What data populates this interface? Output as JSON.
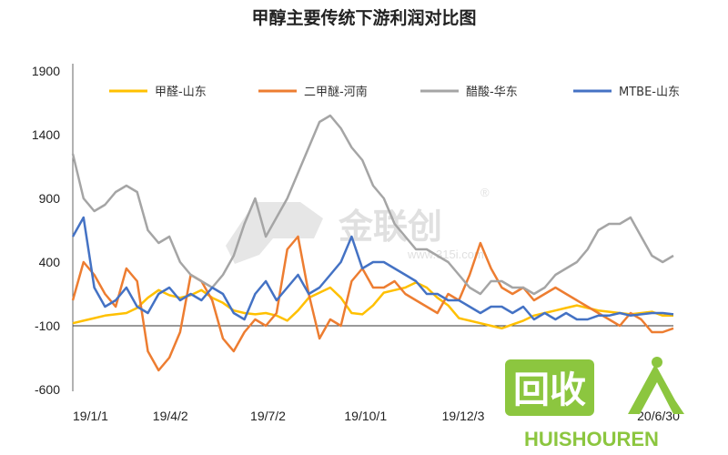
{
  "chart_data": {
    "type": "line",
    "title": "甲醇主要传统下游利润对比图",
    "xlabel": "",
    "ylabel": "",
    "ylim": [
      -600,
      1900
    ],
    "yticks": [
      "1900",
      "1400",
      "900",
      "400",
      "-100",
      "-600"
    ],
    "x_tick_labels": [
      "19/1/1",
      "19/4/2",
      "19/7/2",
      "19/10/1",
      "19/12/31",
      "20/6/30"
    ],
    "x_tick_labels_shown": [
      "19/1/1",
      "19/4/2",
      "19/7/2",
      "19/10/1",
      "19/12/3",
      "20/6/30"
    ],
    "x_tick_days": [
      0,
      91,
      182,
      273,
      364,
      546
    ],
    "x_range_days": [
      0,
      560
    ],
    "legend_position": "top",
    "series": [
      {
        "name": "甲醛-山东",
        "color": "#ffc000",
        "x": [
          0,
          10,
          20,
          30,
          40,
          50,
          60,
          70,
          80,
          90,
          100,
          110,
          120,
          130,
          140,
          150,
          160,
          170,
          180,
          190,
          200,
          210,
          220,
          230,
          240,
          250,
          260,
          270,
          280,
          290,
          300,
          310,
          320,
          330,
          340,
          350,
          360,
          370,
          380,
          390,
          400,
          410,
          420,
          430,
          440,
          450,
          460,
          470,
          480,
          490,
          500,
          510,
          520,
          530,
          540,
          550,
          560
        ],
        "values": [
          -80,
          -60,
          -40,
          -20,
          -10,
          0,
          40,
          120,
          180,
          140,
          120,
          140,
          180,
          120,
          80,
          20,
          0,
          -10,
          0,
          -20,
          -60,
          20,
          120,
          160,
          200,
          120,
          0,
          -10,
          60,
          160,
          180,
          200,
          240,
          200,
          120,
          60,
          -40,
          -60,
          -80,
          -100,
          -120,
          -90,
          -60,
          -20,
          0,
          20,
          40,
          60,
          40,
          20,
          10,
          0,
          -10,
          0,
          10,
          -20,
          -20
        ]
      },
      {
        "name": "二甲醚-河南",
        "color": "#ed7d31",
        "x": [
          0,
          10,
          20,
          30,
          40,
          50,
          60,
          70,
          80,
          90,
          100,
          110,
          120,
          130,
          140,
          150,
          160,
          170,
          180,
          190,
          200,
          210,
          220,
          230,
          240,
          250,
          260,
          270,
          280,
          290,
          300,
          310,
          320,
          330,
          340,
          350,
          360,
          370,
          380,
          390,
          400,
          410,
          420,
          430,
          440,
          450,
          460,
          470,
          480,
          490,
          500,
          510,
          520,
          530,
          540,
          550,
          560
        ],
        "values": [
          100,
          400,
          300,
          150,
          50,
          350,
          250,
          -300,
          -450,
          -350,
          -150,
          300,
          250,
          100,
          -200,
          -300,
          -150,
          -50,
          -100,
          0,
          500,
          600,
          150,
          -200,
          -50,
          -100,
          250,
          350,
          200,
          200,
          250,
          150,
          100,
          50,
          0,
          150,
          100,
          300,
          550,
          350,
          200,
          150,
          200,
          100,
          150,
          200,
          150,
          100,
          50,
          0,
          -50,
          -100,
          0,
          -50,
          -150,
          -150,
          -120
        ]
      },
      {
        "name": "醋酸-华东",
        "color": "#a5a5a5",
        "x": [
          0,
          10,
          20,
          30,
          40,
          50,
          60,
          70,
          80,
          90,
          100,
          110,
          120,
          130,
          140,
          150,
          160,
          170,
          180,
          190,
          200,
          210,
          220,
          230,
          240,
          250,
          260,
          270,
          280,
          290,
          300,
          310,
          320,
          330,
          340,
          350,
          360,
          370,
          380,
          390,
          400,
          410,
          420,
          430,
          440,
          450,
          460,
          470,
          480,
          490,
          500,
          510,
          520,
          530,
          540,
          550,
          560
        ],
        "values": [
          1250,
          900,
          800,
          850,
          950,
          1000,
          950,
          650,
          550,
          600,
          400,
          300,
          250,
          200,
          300,
          450,
          700,
          900,
          600,
          750,
          900,
          1100,
          1300,
          1500,
          1550,
          1450,
          1300,
          1200,
          1000,
          900,
          700,
          600,
          500,
          500,
          450,
          400,
          300,
          200,
          150,
          250,
          250,
          200,
          200,
          150,
          200,
          300,
          350,
          400,
          500,
          650,
          700,
          700,
          750,
          600,
          450,
          400,
          450
        ]
      },
      {
        "name": "MTBE-山东",
        "color": "#4472c4",
        "x": [
          0,
          10,
          20,
          30,
          40,
          50,
          60,
          70,
          80,
          90,
          100,
          110,
          120,
          130,
          140,
          150,
          160,
          170,
          180,
          190,
          200,
          210,
          220,
          230,
          240,
          250,
          260,
          270,
          280,
          290,
          300,
          310,
          320,
          330,
          340,
          350,
          360,
          370,
          380,
          390,
          400,
          410,
          420,
          430,
          440,
          450,
          460,
          470,
          480,
          490,
          500,
          510,
          520,
          530,
          540,
          550,
          560
        ],
        "values": [
          600,
          750,
          200,
          50,
          100,
          200,
          50,
          0,
          150,
          200,
          100,
          150,
          100,
          200,
          150,
          0,
          -50,
          150,
          250,
          100,
          200,
          300,
          150,
          200,
          300,
          400,
          600,
          350,
          400,
          400,
          350,
          300,
          250,
          150,
          150,
          100,
          100,
          50,
          0,
          50,
          50,
          0,
          50,
          -50,
          0,
          -50,
          0,
          -50,
          -50,
          -20,
          -20,
          0,
          -20,
          -10,
          0,
          0,
          -10
        ]
      }
    ]
  },
  "watermark": {
    "brand_text": "金联创",
    "registered": "®",
    "site_text": "www.315i.com"
  },
  "logo": {
    "cn_text": "回收",
    "en_text": "HUISHOUREN",
    "color": "#8cc63f"
  },
  "zero_line_value": -100
}
